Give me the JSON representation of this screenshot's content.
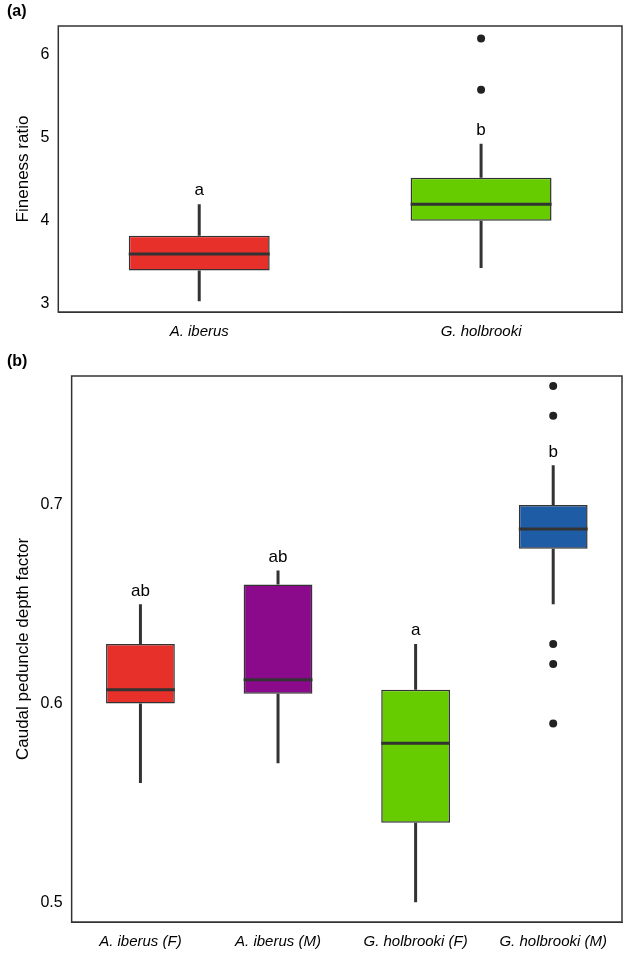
{
  "chart_data": [
    {
      "type": "boxplot",
      "panel": "(a)",
      "y_label": "Fineness ratio",
      "categories": [
        "A. iberus",
        "G. holbrooki"
      ],
      "colors": [
        "#e8302a",
        "#66cc00"
      ],
      "boxes": [
        {
          "min": 3.03,
          "q1": 3.4,
          "median": 3.6,
          "q3": 3.82,
          "max": 4.2,
          "outliers": []
        },
        {
          "min": 3.43,
          "q1": 4.0,
          "median": 4.2,
          "q3": 4.52,
          "max": 4.93,
          "outliers": [
            5.58,
            6.2
          ]
        }
      ],
      "annotations": [
        "a",
        "b"
      ],
      "ylim": [
        2.9,
        6.35
      ],
      "yticks": [
        3,
        4,
        5,
        6
      ],
      "grid": false
    },
    {
      "type": "boxplot",
      "panel": "(b)",
      "y_label": "Caudal peduncle depth factor",
      "categories": [
        "A. iberus (F)",
        "A. iberus (M)",
        "G. holbrooki (F)",
        "G. holbrooki (M)"
      ],
      "colors": [
        "#e8302a",
        "#8b0a8b",
        "#66cc00",
        "#1f5ca6"
      ],
      "boxes": [
        {
          "min": 0.56,
          "q1": 0.6,
          "median": 0.607,
          "q3": 0.63,
          "max": 0.65,
          "outliers": []
        },
        {
          "min": 0.57,
          "q1": 0.605,
          "median": 0.612,
          "q3": 0.66,
          "max": 0.667,
          "outliers": []
        },
        {
          "min": 0.5,
          "q1": 0.54,
          "median": 0.58,
          "q3": 0.607,
          "max": 0.63,
          "outliers": []
        },
        {
          "min": 0.65,
          "q1": 0.678,
          "median": 0.688,
          "q3": 0.7,
          "max": 0.72,
          "outliers": [
            0.59,
            0.62,
            0.63,
            0.745,
            0.76
          ]
        }
      ],
      "annotations": [
        "ab",
        "ab",
        "a",
        "b"
      ],
      "ylim": [
        0.49,
        0.765
      ],
      "yticks": [
        0.5,
        0.6,
        0.7
      ],
      "grid": false
    }
  ]
}
